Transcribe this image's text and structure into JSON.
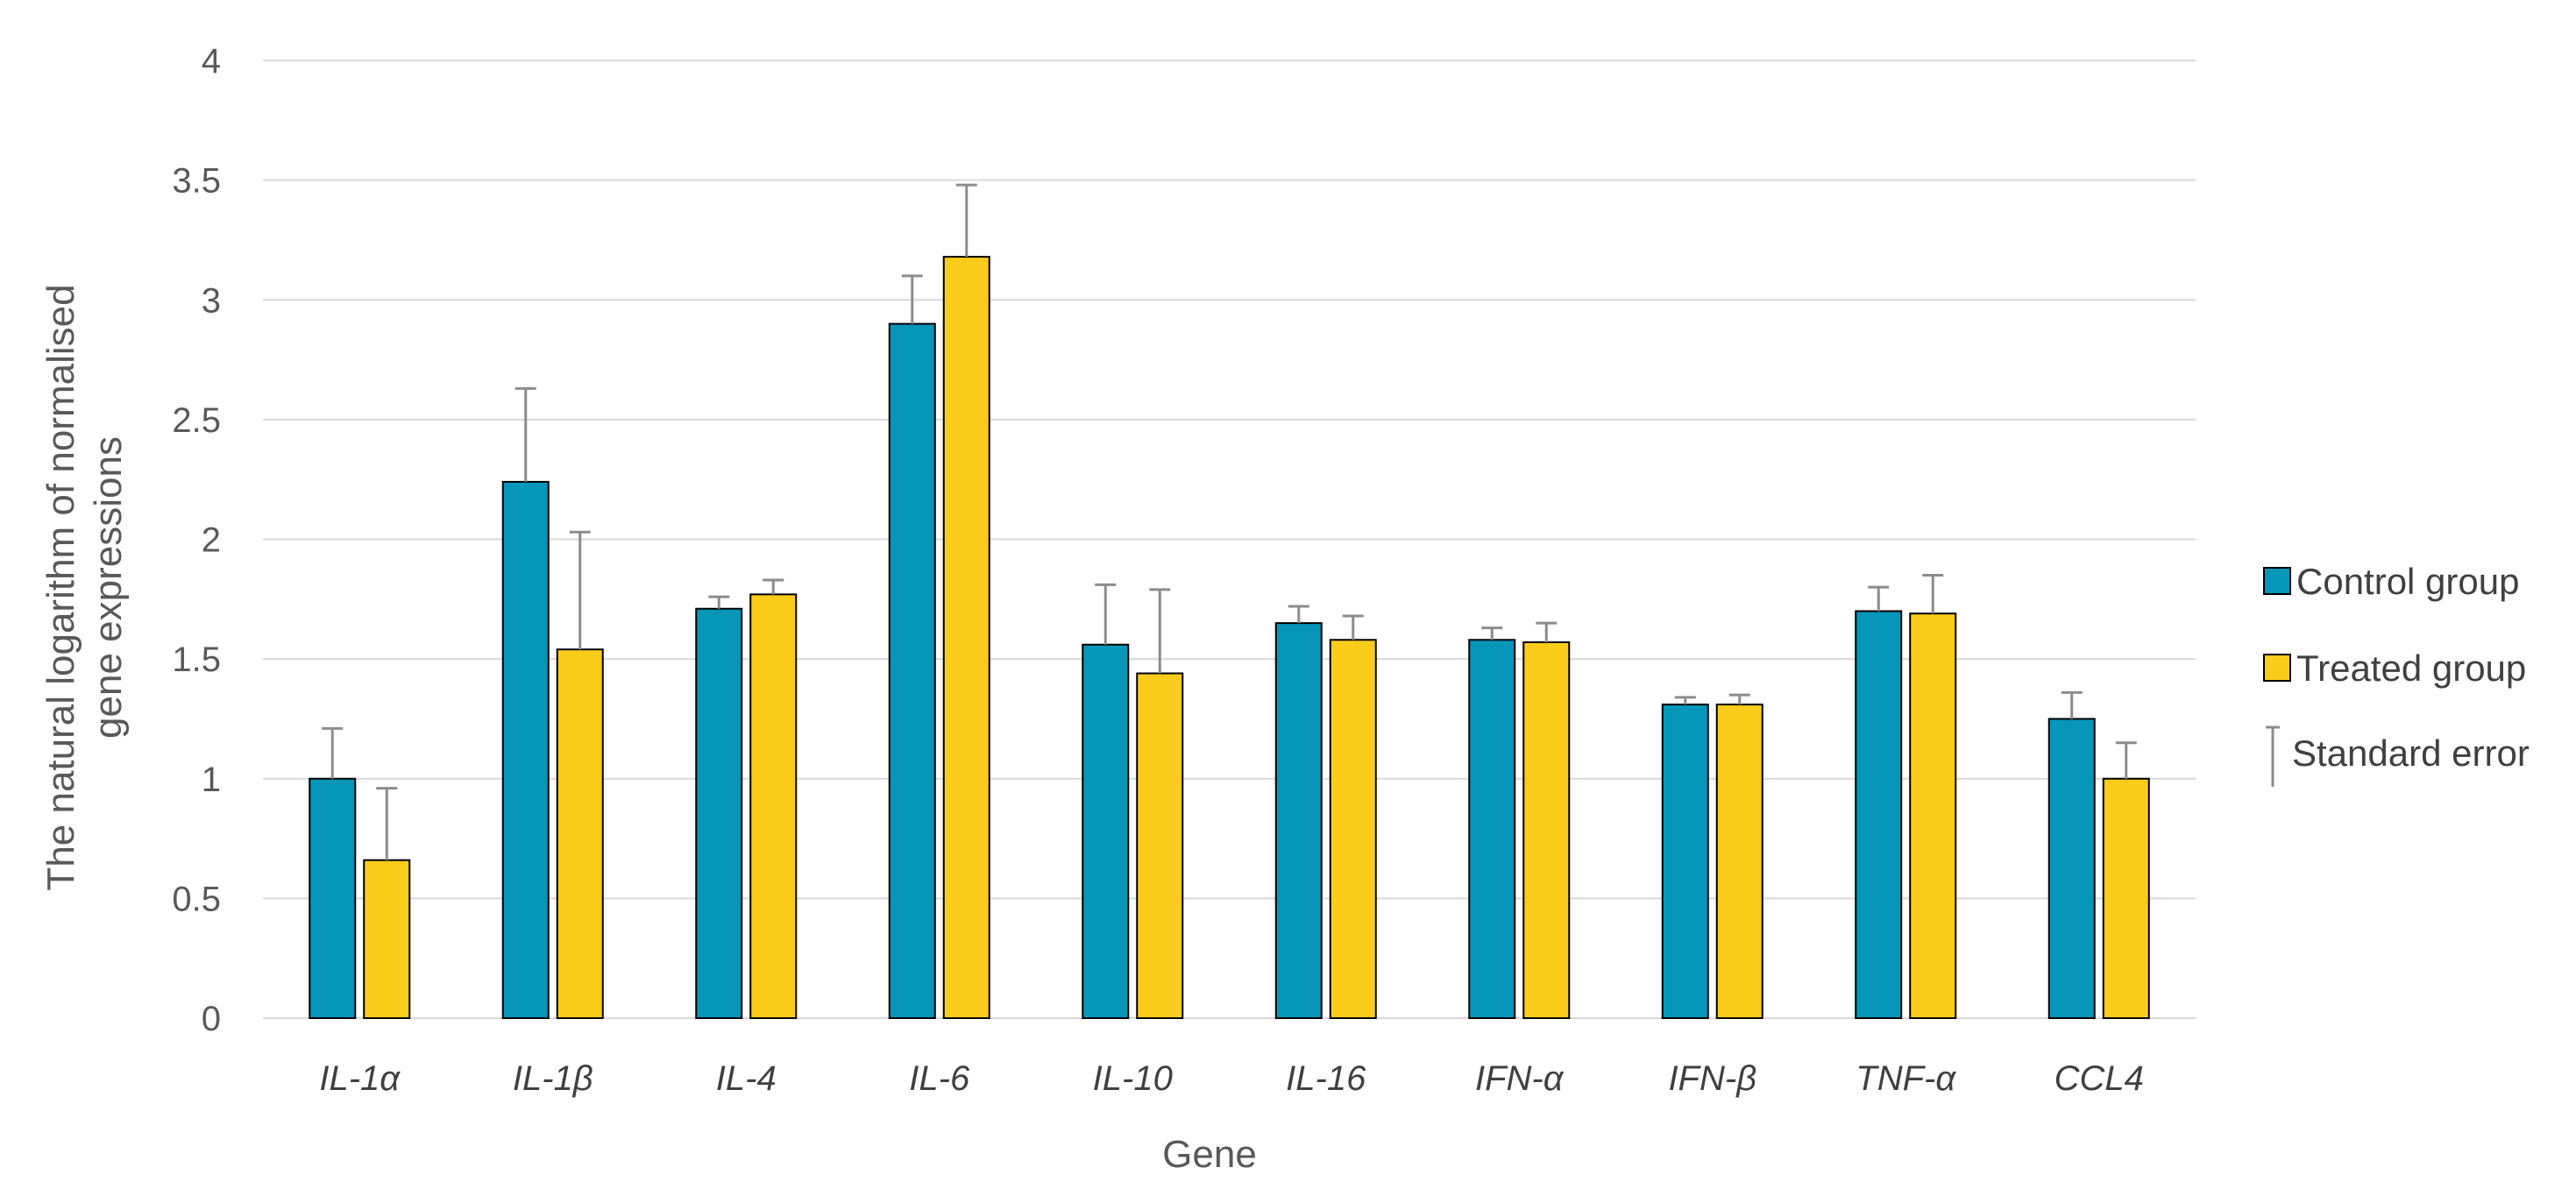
{
  "chart_data": {
    "type": "bar",
    "title": "",
    "xlabel": "Gene",
    "ylabel": "The natural logarithm of normalised gene expressions",
    "ylim": [
      0,
      4
    ],
    "yticks": [
      0,
      0.5,
      1,
      1.5,
      2,
      2.5,
      3,
      3.5,
      4
    ],
    "ytick_labels": [
      "0",
      "0.5",
      "1",
      "1.5",
      "2",
      "2.5",
      "3",
      "3.5",
      "4"
    ],
    "grid": true,
    "legend_position": "right",
    "categories": [
      "IL-1α",
      "IL-1β",
      "IL-4",
      "IL-6",
      "IL-10",
      "IL-16",
      "IFN-α",
      "IFN-β",
      "TNF-α",
      "CCL4"
    ],
    "series": [
      {
        "name": "Control group",
        "color": "#0596b9",
        "values": [
          1.0,
          2.24,
          1.71,
          2.9,
          1.56,
          1.65,
          1.58,
          1.31,
          1.7,
          1.25
        ],
        "error": [
          0.21,
          0.39,
          0.05,
          0.2,
          0.25,
          0.07,
          0.05,
          0.03,
          0.1,
          0.11
        ]
      },
      {
        "name": "Treated group",
        "color": "#fccc1b",
        "values": [
          0.66,
          1.54,
          1.77,
          3.18,
          1.44,
          1.58,
          1.57,
          1.31,
          1.69,
          1.0
        ],
        "error": [
          0.3,
          0.49,
          0.06,
          0.3,
          0.35,
          0.1,
          0.08,
          0.04,
          0.16,
          0.15
        ]
      }
    ],
    "legend": {
      "control": "Control group",
      "treated": "Treated group",
      "error": "Standard error"
    }
  }
}
